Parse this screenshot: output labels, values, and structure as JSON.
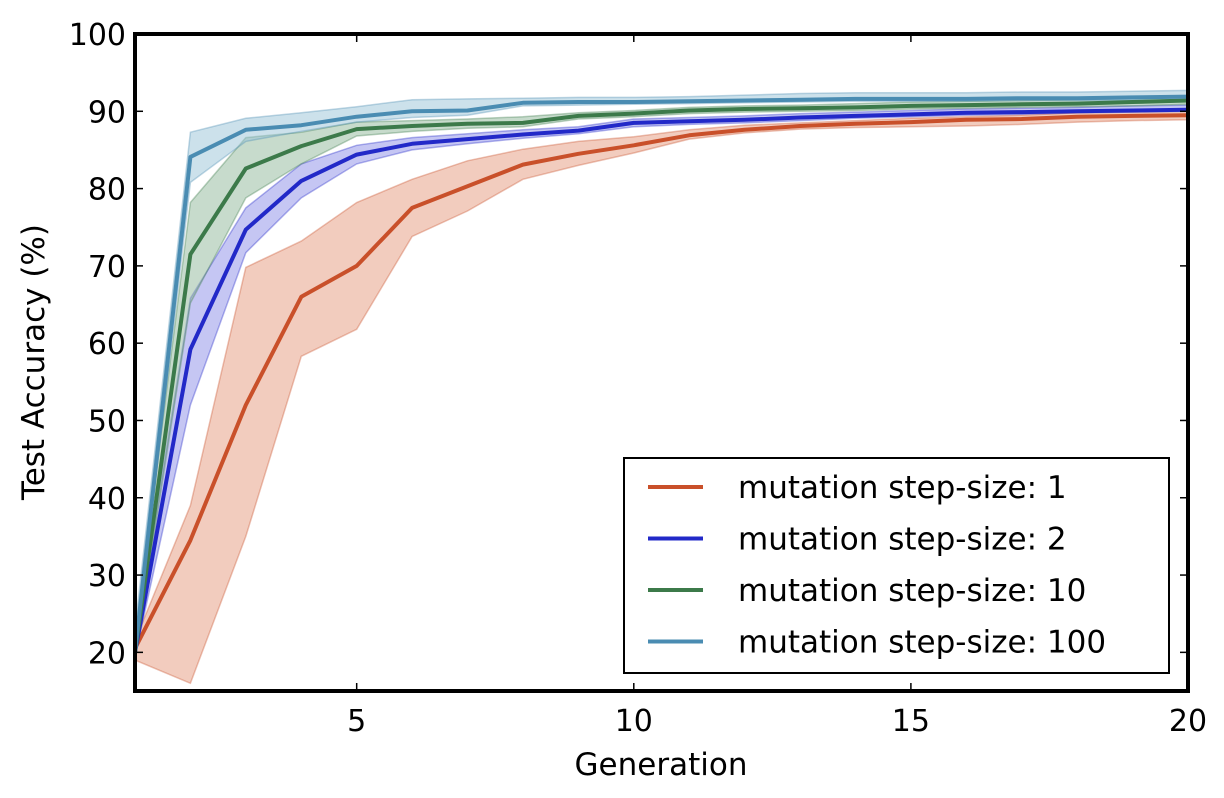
{
  "chart_data": {
    "type": "line",
    "title": "",
    "xlabel": "Generation",
    "ylabel": "Test Accuracy (%)",
    "xlim": [
      1,
      20
    ],
    "ylim": [
      15,
      100
    ],
    "xticks": [
      5,
      10,
      15,
      20
    ],
    "yticks": [
      20,
      30,
      40,
      50,
      60,
      70,
      80,
      90,
      100
    ],
    "legend_position": "lower-right",
    "x": [
      1,
      2,
      3,
      4,
      5,
      6,
      7,
      8,
      9,
      10,
      11,
      12,
      13,
      14,
      15,
      16,
      17,
      18,
      19,
      20
    ],
    "series": [
      {
        "name": "mutation step-size: 1",
        "color": "#c9502a",
        "band_color": "#e59a7e",
        "values": [
          20.5,
          34.5,
          52.0,
          66.0,
          70.0,
          77.5,
          80.3,
          83.1,
          84.5,
          85.6,
          86.9,
          87.6,
          88.1,
          88.4,
          88.6,
          88.9,
          89.0,
          89.3,
          89.4,
          89.5
        ],
        "lower": [
          19.0,
          16.0,
          35.0,
          58.3,
          61.8,
          73.8,
          77.1,
          81.2,
          83.0,
          84.6,
          86.4,
          87.2,
          87.7,
          87.9,
          88.0,
          88.1,
          88.3,
          88.6,
          88.8,
          88.9
        ],
        "upper": [
          21.5,
          39.0,
          69.8,
          73.2,
          78.2,
          81.2,
          83.6,
          85.1,
          86.1,
          86.7,
          87.6,
          88.2,
          88.5,
          88.8,
          89.1,
          89.3,
          89.5,
          89.8,
          90.0,
          90.1
        ]
      },
      {
        "name": "mutation step-size: 2",
        "color": "#2229c8",
        "band_color": "#8b8ee8",
        "values": [
          20.0,
          59.2,
          74.7,
          81.0,
          84.4,
          85.8,
          86.4,
          87.0,
          87.5,
          88.5,
          88.7,
          88.9,
          89.2,
          89.4,
          89.6,
          89.8,
          89.9,
          90.0,
          90.1,
          90.2
        ],
        "lower": [
          19.5,
          52.0,
          71.7,
          78.8,
          83.2,
          85.0,
          85.8,
          86.5,
          87.1,
          88.0,
          88.3,
          88.5,
          88.8,
          89.1,
          89.3,
          89.5,
          89.6,
          89.8,
          89.9,
          90.0
        ],
        "upper": [
          21.0,
          65.8,
          77.5,
          83.2,
          85.6,
          86.6,
          87.1,
          87.6,
          88.0,
          89.0,
          89.2,
          89.4,
          89.7,
          89.9,
          90.1,
          90.3,
          90.4,
          90.5,
          90.7,
          90.8
        ]
      },
      {
        "name": "mutation step-size: 10",
        "color": "#3c7a4a",
        "band_color": "#8fb89a",
        "values": [
          20.0,
          71.5,
          82.6,
          85.5,
          87.7,
          88.1,
          88.4,
          88.5,
          89.4,
          89.7,
          90.1,
          90.3,
          90.4,
          90.5,
          90.7,
          90.8,
          90.9,
          91.0,
          91.2,
          91.4
        ],
        "lower": [
          19.5,
          65.2,
          78.8,
          83.2,
          86.8,
          87.4,
          87.8,
          88.0,
          89.0,
          89.3,
          89.7,
          89.9,
          90.0,
          90.1,
          90.3,
          90.4,
          90.5,
          90.6,
          90.7,
          90.9
        ],
        "upper": [
          21.5,
          78.2,
          86.6,
          87.3,
          88.6,
          88.8,
          89.0,
          89.3,
          89.8,
          90.1,
          90.5,
          90.7,
          90.8,
          91.0,
          91.2,
          91.3,
          91.4,
          91.5,
          91.7,
          91.8
        ]
      },
      {
        "name": "mutation step-size: 100",
        "color": "#4a8cb2",
        "band_color": "#9ac3d8",
        "values": [
          20.0,
          84.1,
          87.6,
          88.2,
          89.3,
          90.0,
          90.1,
          91.1,
          91.2,
          91.2,
          91.3,
          91.4,
          91.5,
          91.6,
          91.6,
          91.6,
          91.7,
          91.7,
          91.8,
          91.9
        ],
        "lower": [
          19.5,
          80.8,
          86.1,
          87.4,
          88.6,
          89.2,
          89.5,
          90.7,
          90.8,
          90.9,
          91.0,
          91.1,
          91.2,
          91.3,
          91.3,
          91.3,
          91.4,
          91.4,
          91.4,
          91.5
        ],
        "upper": [
          23.0,
          87.3,
          89.1,
          89.8,
          90.6,
          91.5,
          91.6,
          91.7,
          91.8,
          91.8,
          91.9,
          92.1,
          92.3,
          92.4,
          92.4,
          92.4,
          92.5,
          92.5,
          92.6,
          92.7
        ]
      }
    ]
  }
}
